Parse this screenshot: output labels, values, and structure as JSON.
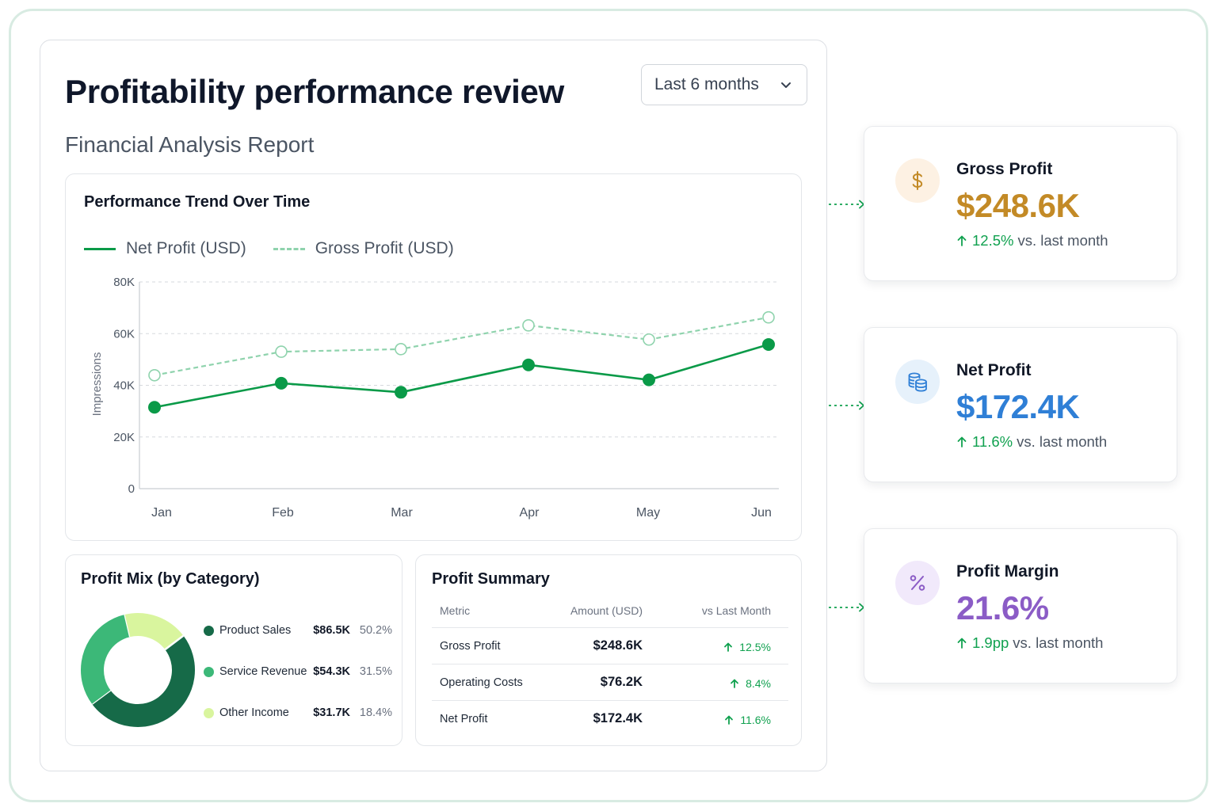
{
  "header": {
    "title": "Profitability performance review",
    "subtitle": "Financial Analysis Report",
    "period_select": {
      "value": "Last 6 months"
    }
  },
  "trend_panel": {
    "title": "Performance Trend Over Time",
    "legend": [
      "Net Profit (USD)",
      "Gross Profit (USD)"
    ]
  },
  "chart_data": {
    "type": "line",
    "title": "Performance Trend Over Time",
    "xlabel": "",
    "ylabel": "Impressions",
    "categories": [
      "Jan",
      "Feb",
      "Mar",
      "Apr",
      "May",
      "Jun"
    ],
    "ylim": [
      0,
      80000
    ],
    "yticks": [
      0,
      20000,
      40000,
      60000,
      80000
    ],
    "ytick_labels": [
      "0",
      "20K",
      "40K",
      "60K",
      "80K"
    ],
    "grid": true,
    "legend_position": "top-left",
    "series": [
      {
        "name": "Net Profit (USD)",
        "style": "solid",
        "color": "#0a9a48",
        "values": [
          31500,
          40800,
          37300,
          47900,
          42100,
          55800
        ]
      },
      {
        "name": "Gross Profit (USD)",
        "style": "dashed",
        "color": "#8fd3ad",
        "values": [
          43900,
          53000,
          54000,
          63200,
          57700,
          66300
        ]
      }
    ]
  },
  "mix_panel": {
    "title": "Profit Mix (by Category)",
    "items": [
      {
        "name": "Product Sales",
        "amount": "$86.5K",
        "pct": "50.2%",
        "share": 50.2,
        "color": "#166a48"
      },
      {
        "name": "Service Revenue",
        "amount": "$54.3K",
        "pct": "31.5%",
        "share": 31.5,
        "color": "#3cb878"
      },
      {
        "name": "Other Income",
        "amount": "$31.7K",
        "pct": "18.4%",
        "share": 18.4,
        "color": "#d9f59e"
      }
    ]
  },
  "summary_panel": {
    "title": "Profit Summary",
    "columns": [
      "Metric",
      "Amount (USD)",
      "vs Last Month"
    ],
    "rows": [
      {
        "metric": "Gross Profit",
        "amount": "$248.6K",
        "change": "12.5%"
      },
      {
        "metric": "Operating Costs",
        "amount": "$76.2K",
        "change": "8.4%"
      },
      {
        "metric": "Net Profit",
        "amount": "$172.4K",
        "change": "11.6%"
      }
    ]
  },
  "kpis": [
    {
      "label": "Gross Profit",
      "value": "$248.6K",
      "delta": "12.5%",
      "suffix": "vs. last month",
      "icon": "dollar-icon",
      "color": "#c38a26",
      "icon_bg": "#fdf1e3"
    },
    {
      "label": "Net Profit",
      "value": "$172.4K",
      "delta": "11.6%",
      "suffix": "vs. last month",
      "icon": "coins-icon",
      "color": "#2f7fd6",
      "icon_bg": "#e6f1fb"
    },
    {
      "label": "Profit Margin",
      "value": "21.6%",
      "delta": "1.9pp",
      "suffix": "vs. last month",
      "icon": "percent-icon",
      "color": "#8b5cc6",
      "icon_bg": "#f1e9fb"
    }
  ],
  "colors": {
    "accent_green": "#0a9a48",
    "positive": "#10a14f",
    "frame": "#d8ebe2"
  }
}
